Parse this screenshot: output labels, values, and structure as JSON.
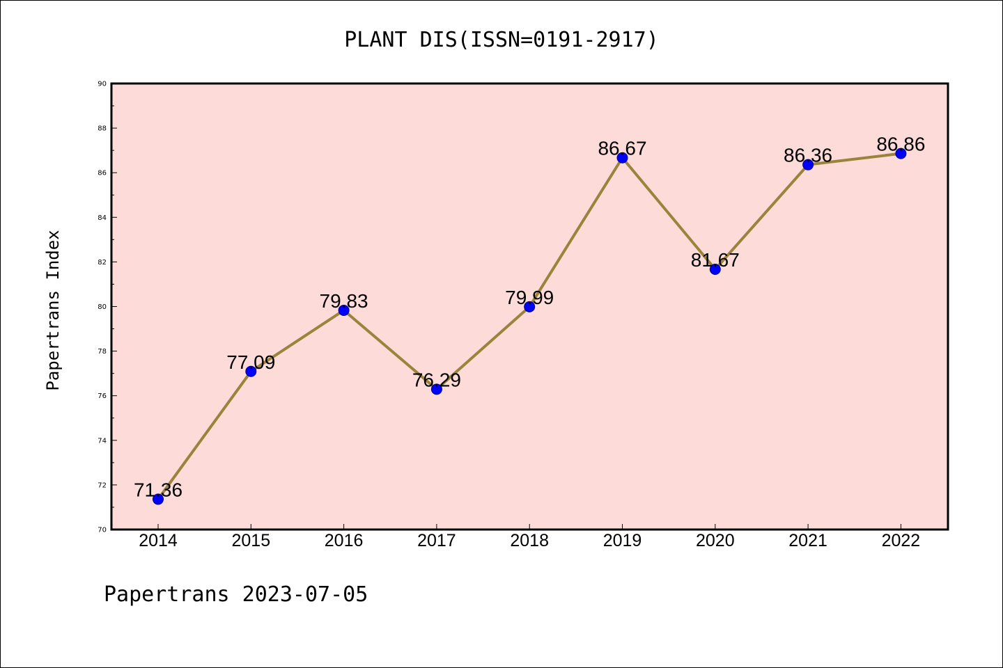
{
  "chart_data": {
    "type": "line",
    "title": "PLANT DIS(ISSN=0191-2917)",
    "xlabel": "",
    "ylabel": "Papertrans Index",
    "categories": [
      "2014",
      "2015",
      "2016",
      "2017",
      "2018",
      "2019",
      "2020",
      "2021",
      "2022"
    ],
    "series": [
      {
        "values": [
          71.36,
          77.09,
          79.83,
          76.29,
          79.99,
          86.67,
          81.67,
          86.36,
          86.86
        ],
        "labels": [
          "71.36",
          "77.09",
          "79.83",
          "76.29",
          "79.99",
          "86.67",
          "81.67",
          "86.36",
          "86.86"
        ]
      }
    ],
    "ylim": [
      70,
      90
    ],
    "yticks": [
      "70",
      "72",
      "74",
      "76",
      "78",
      "80",
      "82",
      "84",
      "86",
      "88",
      "90"
    ],
    "grid": false,
    "legend": "none",
    "colors": {
      "plot_background": "#fddbd8",
      "line": "#9b833c",
      "marker": "#0000ff",
      "marker_edge": "#00008b"
    }
  },
  "footer": "Papertrans 2023-07-05"
}
